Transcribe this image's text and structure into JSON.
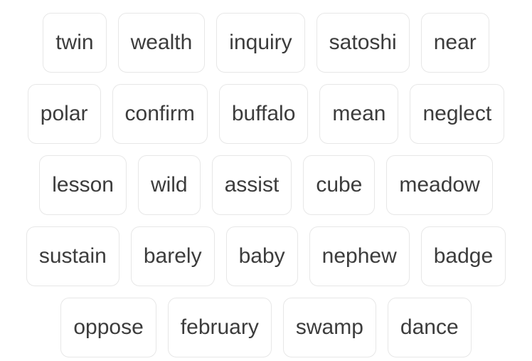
{
  "words": [
    [
      "twin",
      "wealth",
      "inquiry",
      "satoshi",
      "near"
    ],
    [
      "polar",
      "confirm",
      "buffalo",
      "mean",
      "neglect"
    ],
    [
      "lesson",
      "wild",
      "assist",
      "cube",
      "meadow"
    ],
    [
      "sustain",
      "barely",
      "baby",
      "nephew",
      "badge"
    ],
    [
      "oppose",
      "february",
      "swamp",
      "dance"
    ]
  ]
}
